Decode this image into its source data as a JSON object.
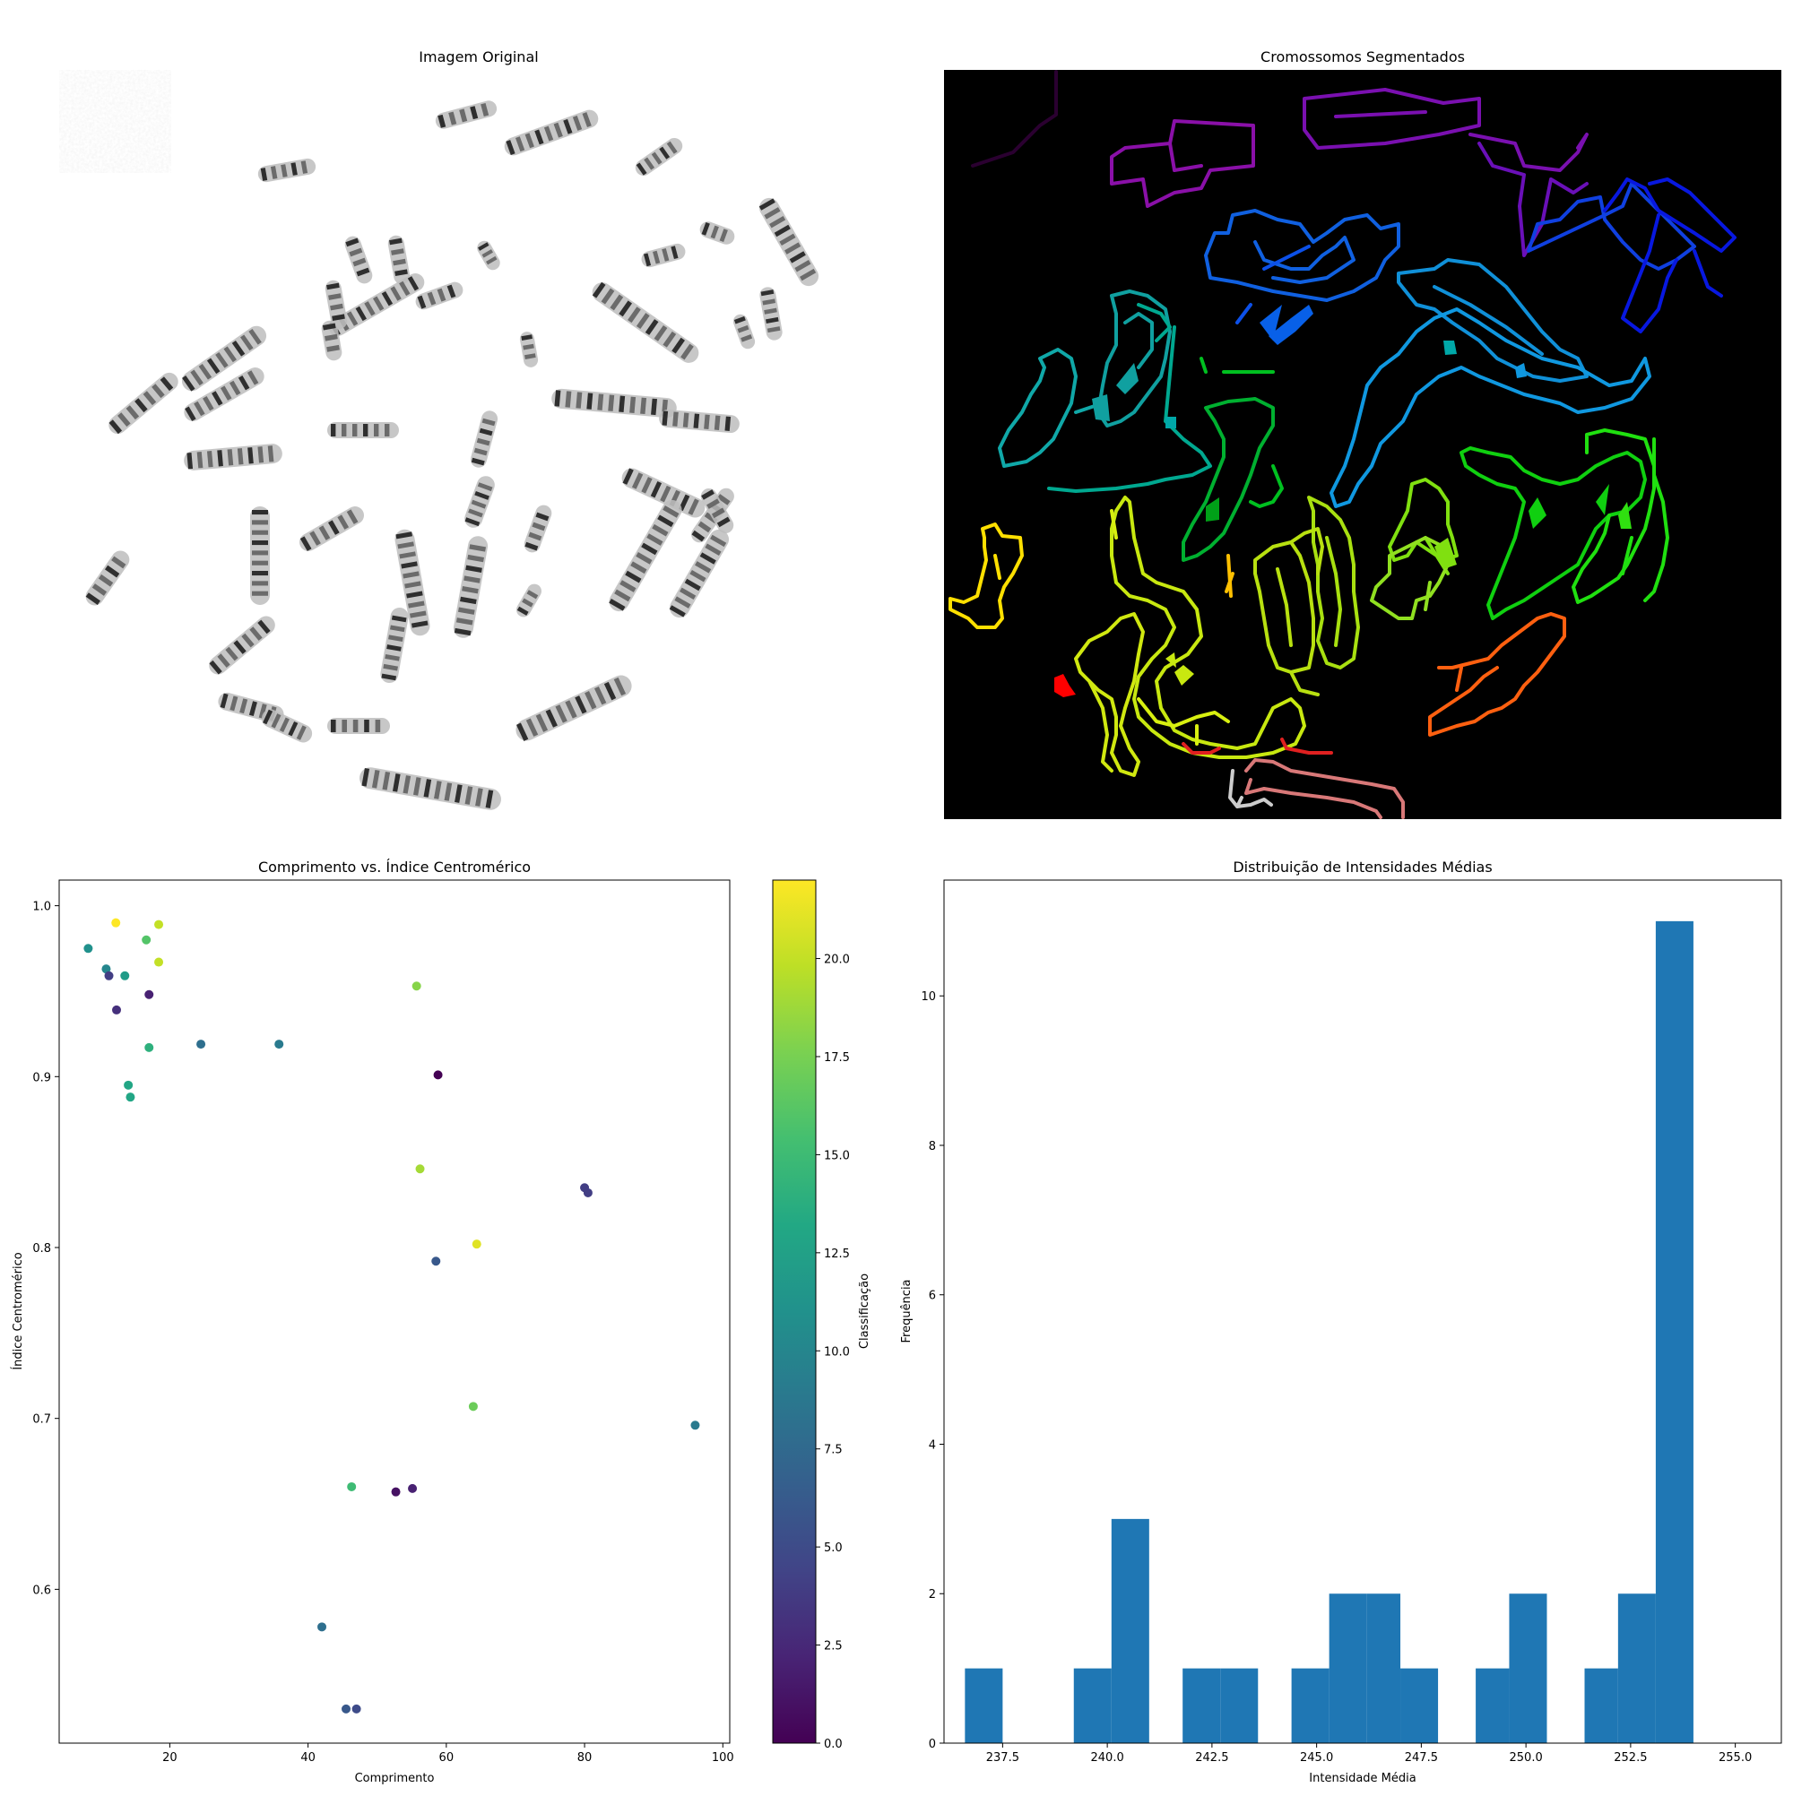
{
  "panels": {
    "original": {
      "title": "Imagem Original"
    },
    "segmented": {
      "title": "Cromossomos Segmentados"
    }
  },
  "chart_data": [
    {
      "type": "scatter",
      "title": "Comprimento vs. Índice Centromérico",
      "xlabel": "Comprimento",
      "ylabel": "Índice Centromérico",
      "xlim": [
        4,
        101
      ],
      "ylim": [
        0.51,
        1.015
      ],
      "xticks": [
        20,
        40,
        60,
        80,
        100
      ],
      "yticks": [
        0.6,
        0.7,
        0.8,
        0.9,
        1.0
      ],
      "ytick_labels": [
        "0.6",
        "0.7",
        "0.8",
        "0.9",
        "1.0"
      ],
      "grid": false,
      "colorbar": {
        "label": "Classificação",
        "colormap": "viridis",
        "range": [
          0,
          22
        ],
        "ticks": [
          0.0,
          2.5,
          5.0,
          7.5,
          10.0,
          12.5,
          15.0,
          17.5,
          20.0
        ],
        "tick_labels": [
          "0.0",
          "2.5",
          "5.0",
          "7.5",
          "10.0",
          "12.5",
          "15.0",
          "17.5",
          "20.0"
        ]
      },
      "points": [
        {
          "x": 8.2,
          "y": 0.975,
          "c": 11
        },
        {
          "x": 10.8,
          "y": 0.963,
          "c": 10
        },
        {
          "x": 11.2,
          "y": 0.959,
          "c": 4
        },
        {
          "x": 12.2,
          "y": 0.99,
          "c": 22
        },
        {
          "x": 12.3,
          "y": 0.939,
          "c": 3
        },
        {
          "x": 13.5,
          "y": 0.959,
          "c": 12
        },
        {
          "x": 14.0,
          "y": 0.895,
          "c": 13
        },
        {
          "x": 14.3,
          "y": 0.888,
          "c": 13
        },
        {
          "x": 16.6,
          "y": 0.98,
          "c": 16
        },
        {
          "x": 17.0,
          "y": 0.948,
          "c": 2
        },
        {
          "x": 17.0,
          "y": 0.917,
          "c": 14
        },
        {
          "x": 18.4,
          "y": 0.989,
          "c": 20
        },
        {
          "x": 18.4,
          "y": 0.967,
          "c": 20
        },
        {
          "x": 24.5,
          "y": 0.919,
          "c": 8
        },
        {
          "x": 35.8,
          "y": 0.919,
          "c": 9
        },
        {
          "x": 42.0,
          "y": 0.578,
          "c": 8
        },
        {
          "x": 45.5,
          "y": 0.53,
          "c": 6
        },
        {
          "x": 46.3,
          "y": 0.66,
          "c": 15
        },
        {
          "x": 47.0,
          "y": 0.53,
          "c": 5
        },
        {
          "x": 52.7,
          "y": 0.657,
          "c": 1
        },
        {
          "x": 55.1,
          "y": 0.659,
          "c": 2
        },
        {
          "x": 55.7,
          "y": 0.953,
          "c": 18
        },
        {
          "x": 56.2,
          "y": 0.846,
          "c": 19
        },
        {
          "x": 58.5,
          "y": 0.792,
          "c": 6
        },
        {
          "x": 58.8,
          "y": 0.901,
          "c": 0
        },
        {
          "x": 63.9,
          "y": 0.707,
          "c": 17
        },
        {
          "x": 64.4,
          "y": 0.802,
          "c": 21
        },
        {
          "x": 80.0,
          "y": 0.835,
          "c": 4
        },
        {
          "x": 80.5,
          "y": 0.832,
          "c": 4
        },
        {
          "x": 96.0,
          "y": 0.696,
          "c": 9
        }
      ]
    },
    {
      "type": "bar",
      "title": "Distribuição de Intensidades Médias",
      "xlabel": "Intensidade Média",
      "ylabel": "Frequência",
      "xlim": [
        236.1,
        256.1
      ],
      "ylim": [
        0,
        11.55
      ],
      "xticks": [
        237.5,
        240.0,
        242.5,
        245.0,
        247.5,
        250.0,
        252.5,
        255.0
      ],
      "xtick_labels": [
        "237.5",
        "240.0",
        "242.5",
        "245.0",
        "247.5",
        "250.0",
        "252.5",
        "255.0"
      ],
      "yticks": [
        0,
        2,
        4,
        6,
        8,
        10
      ],
      "bar_color": "#1f77b4",
      "bins": [
        {
          "x0": 236.6,
          "x1": 237.5,
          "count": 1
        },
        {
          "x0": 237.5,
          "x1": 238.4,
          "count": 0
        },
        {
          "x0": 238.4,
          "x1": 239.2,
          "count": 0
        },
        {
          "x0": 239.2,
          "x1": 240.1,
          "count": 1
        },
        {
          "x0": 240.1,
          "x1": 241.0,
          "count": 3
        },
        {
          "x0": 241.0,
          "x1": 241.8,
          "count": 0
        },
        {
          "x0": 241.8,
          "x1": 242.7,
          "count": 1
        },
        {
          "x0": 242.7,
          "x1": 243.6,
          "count": 1
        },
        {
          "x0": 243.6,
          "x1": 244.4,
          "count": 0
        },
        {
          "x0": 244.4,
          "x1": 245.3,
          "count": 1
        },
        {
          "x0": 245.3,
          "x1": 246.2,
          "count": 2
        },
        {
          "x0": 246.2,
          "x1": 247.0,
          "count": 2
        },
        {
          "x0": 247.0,
          "x1": 247.9,
          "count": 1
        },
        {
          "x0": 247.9,
          "x1": 248.8,
          "count": 0
        },
        {
          "x0": 248.8,
          "x1": 249.6,
          "count": 1
        },
        {
          "x0": 249.6,
          "x1": 250.5,
          "count": 2
        },
        {
          "x0": 250.5,
          "x1": 251.4,
          "count": 0
        },
        {
          "x0": 251.4,
          "x1": 252.2,
          "count": 1
        },
        {
          "x0": 252.2,
          "x1": 253.1,
          "count": 2
        },
        {
          "x0": 253.1,
          "x1": 254.0,
          "count": 11
        }
      ]
    }
  ]
}
